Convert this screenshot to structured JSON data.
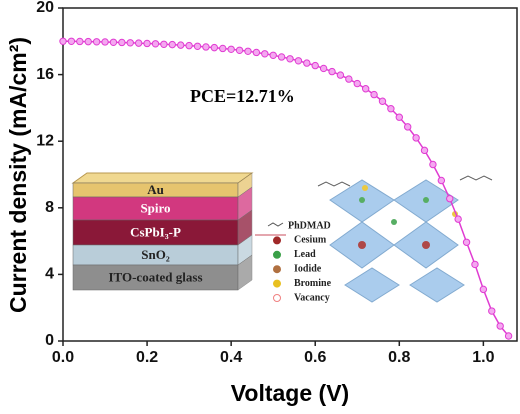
{
  "chart_data": {
    "type": "line",
    "xlabel": "Voltage (V)",
    "ylabel": "Current density (mA/cm²)",
    "annotation": "PCE=12.71%",
    "x": [
      0.0,
      0.02,
      0.04,
      0.06,
      0.08,
      0.1,
      0.12,
      0.14,
      0.16,
      0.18,
      0.2,
      0.22,
      0.24,
      0.26,
      0.28,
      0.3,
      0.32,
      0.34,
      0.36,
      0.38,
      0.4,
      0.42,
      0.44,
      0.46,
      0.48,
      0.5,
      0.52,
      0.54,
      0.56,
      0.58,
      0.6,
      0.62,
      0.64,
      0.66,
      0.68,
      0.7,
      0.72,
      0.74,
      0.76,
      0.78,
      0.8,
      0.82,
      0.84,
      0.86,
      0.88,
      0.9,
      0.92,
      0.94,
      0.96,
      0.98,
      1.0,
      1.02,
      1.04,
      1.06
    ],
    "series": [
      {
        "color": "#e03cd2",
        "values": [
          18.0,
          18.0,
          17.99,
          17.98,
          17.97,
          17.96,
          17.94,
          17.93,
          17.91,
          17.89,
          17.87,
          17.85,
          17.82,
          17.8,
          17.77,
          17.74,
          17.7,
          17.66,
          17.62,
          17.57,
          17.52,
          17.46,
          17.4,
          17.33,
          17.25,
          17.16,
          17.06,
          16.95,
          16.83,
          16.69,
          16.54,
          16.37,
          16.18,
          15.97,
          15.73,
          15.46,
          15.15,
          14.8,
          14.4,
          13.95,
          13.44,
          12.86,
          12.2,
          11.45,
          10.6,
          9.64,
          8.55,
          7.32,
          5.93,
          4.6,
          3.1,
          1.8,
          0.9,
          0.3
        ]
      }
    ],
    "xlim": [
      0,
      1.08
    ],
    "ylim": [
      0,
      20
    ],
    "xticks": [
      {
        "value": 0,
        "label": "0.0"
      },
      0.2,
      0.4,
      0.6,
      0.8,
      {
        "value": 1,
        "label": "1.0"
      }
    ],
    "yticks": [
      0,
      4,
      8,
      12,
      16,
      20
    ],
    "inset": {
      "layers": [
        {
          "label": "Au",
          "color": "#e6c46e"
        },
        {
          "label": "Spiro",
          "color": "#d2387f"
        },
        {
          "label": "CsPbI₃-P",
          "color": "#8a1838"
        },
        {
          "label": "SnO₂",
          "color": "#b9cdd9"
        },
        {
          "label": "ITO-coated glass",
          "color": "#8e8e8e"
        }
      ],
      "legend": [
        {
          "label": "PhDMAD",
          "color": "#555555"
        },
        {
          "label": "Cesium",
          "color": "#a02828"
        },
        {
          "label": "Lead",
          "color": "#3aa048"
        },
        {
          "label": "Iodide",
          "color": "#b07040"
        },
        {
          "label": "Bromine",
          "color": "#e8c020"
        },
        {
          "label": "Vacancy",
          "color": "#f08080"
        }
      ]
    }
  }
}
